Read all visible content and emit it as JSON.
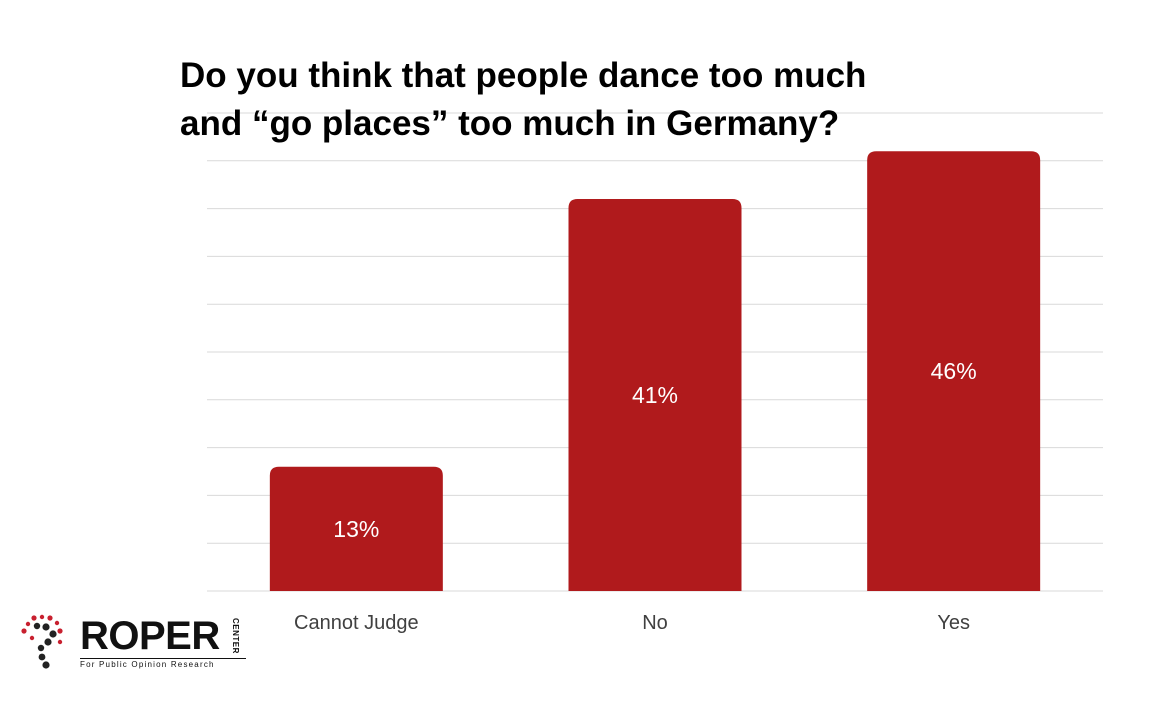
{
  "chart_data": {
    "type": "bar",
    "title_lines": [
      "Do you think that people dance too much",
      "and “go places” too much in Germany?"
    ],
    "categories": [
      "Cannot Judge",
      "No",
      "Yes"
    ],
    "values": [
      13,
      41,
      46
    ],
    "data_labels": [
      "13%",
      "41%",
      "46%"
    ],
    "ylim": [
      0,
      50
    ],
    "grid": true,
    "bar_color": "#b01a1c",
    "gridline_color": "#d9d9d9"
  },
  "logo": {
    "wordmark": "ROPER",
    "side_text": "CENTER",
    "tagline": "For Public Opinion Research",
    "accent_color": "#c8202f"
  }
}
